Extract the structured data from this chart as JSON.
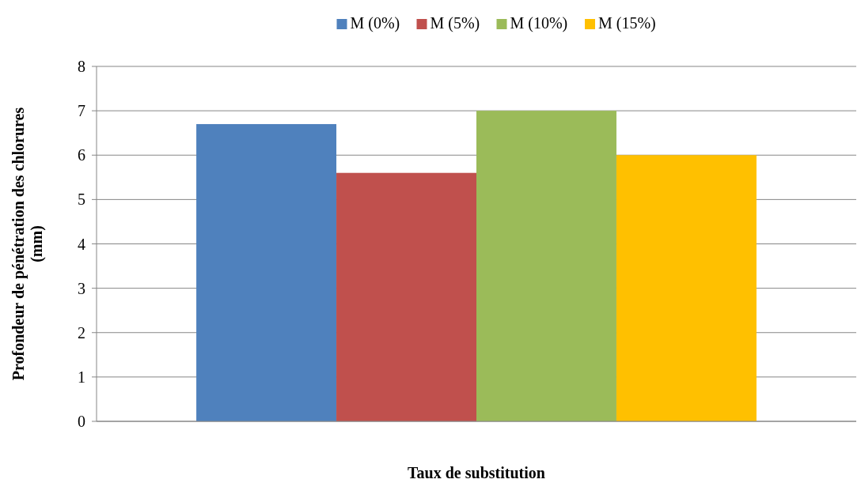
{
  "chart_data": {
    "type": "bar",
    "xlabel": "Taux de substitution",
    "ylabel": "Profondeur de pénétration des chlorures (mm)",
    "categories": [
      null
    ],
    "series": [
      {
        "name": "M (0%)",
        "color": "#4f81bd",
        "values": [
          6.7
        ]
      },
      {
        "name": "M (5%)",
        "color": "#c0504d",
        "values": [
          5.6
        ]
      },
      {
        "name": "M (10%)",
        "color": "#9bbb59",
        "values": [
          7.0
        ]
      },
      {
        "name": "M (15%)",
        "color": "#ffc000",
        "values": [
          6.0
        ]
      }
    ],
    "ylim": [
      0,
      8
    ],
    "yticks": [
      0,
      1,
      2,
      3,
      4,
      5,
      6,
      7,
      8
    ],
    "grid": "y",
    "legend": "top"
  }
}
